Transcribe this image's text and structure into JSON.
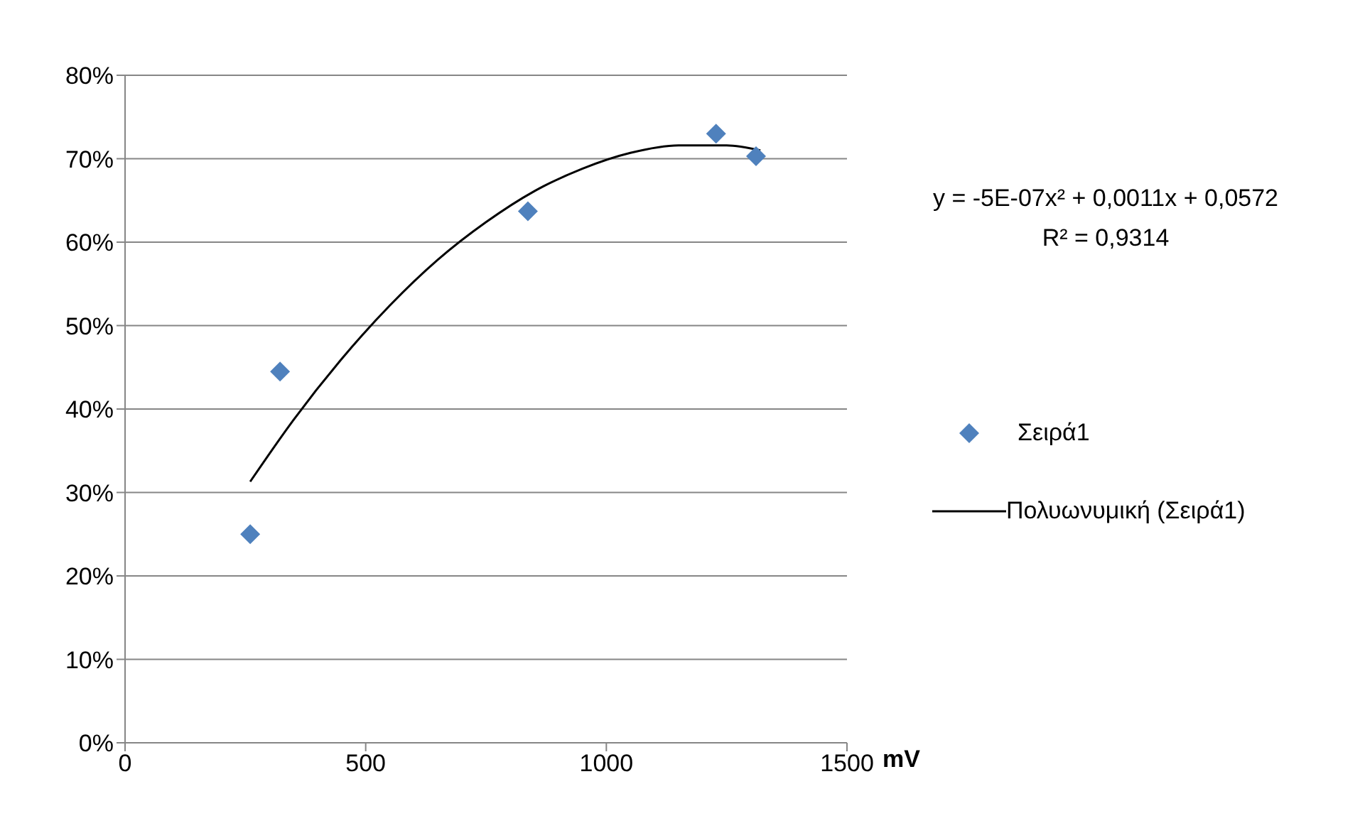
{
  "chart_data": {
    "type": "scatter",
    "xlabel": "mV",
    "annotations": [
      "y = -5E-07x² + 0,0011x + 0,0572",
      "R² = 0,9314"
    ],
    "xlim": [
      0,
      1500
    ],
    "xticks": [
      0,
      500,
      1000,
      1500
    ],
    "ylim": [
      0,
      80
    ],
    "yticks": [
      {
        "value": 0,
        "label": "0%"
      },
      {
        "value": 10,
        "label": "10%"
      },
      {
        "value": 20,
        "label": "20%"
      },
      {
        "value": 30,
        "label": "30%"
      },
      {
        "value": 40,
        "label": "40%"
      },
      {
        "value": 50,
        "label": "50%"
      },
      {
        "value": 60,
        "label": "60%"
      },
      {
        "value": 70,
        "label": "70%"
      },
      {
        "value": 80,
        "label": "80%"
      }
    ],
    "grid": "y",
    "legend": "right",
    "marker": "diamond",
    "series": [
      {
        "name": "Σειρά1",
        "color": "#4f81bd",
        "x": [
          260,
          322,
          837,
          1228,
          1311
        ],
        "values": [
          25,
          44.5,
          63.7,
          73,
          70.3
        ]
      },
      {
        "name": "Πολυωνυμική (Σειρά1)",
        "type": "line",
        "color": "#000000",
        "line_style": "solid",
        "marker": "none",
        "x": [
          260,
          350,
          450,
          550,
          650,
          750,
          850,
          950,
          1050,
          1150,
          1250,
          1320
        ],
        "values": [
          31.3,
          38.7,
          46,
          52.4,
          57.9,
          62.4,
          66.1,
          68.8,
          70.7,
          71.6,
          71.6,
          71
        ]
      }
    ]
  }
}
